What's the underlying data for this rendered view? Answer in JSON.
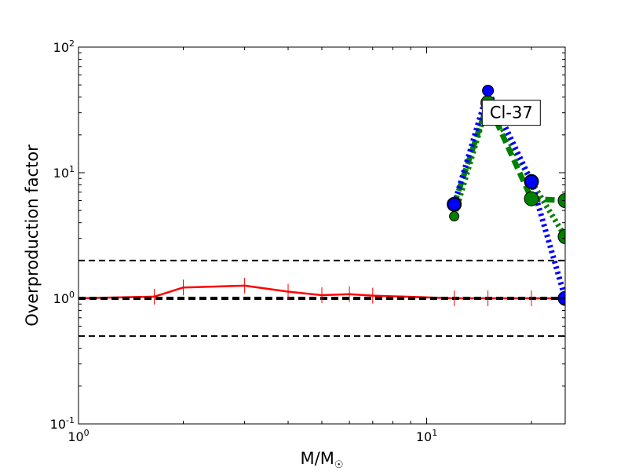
{
  "chart_data": {
    "type": "line",
    "title": "",
    "xlabel": "M/M",
    "xlabel_sub": "☉",
    "ylabel": "Overproduction factor",
    "x_scale": "log",
    "y_scale": "log",
    "xlim": [
      1,
      25
    ],
    "ylim": [
      0.1,
      100
    ],
    "grid": false,
    "x_ticks": [
      {
        "value": 1,
        "base": "10",
        "exp": "0"
      },
      {
        "value": 10,
        "base": "10",
        "exp": "1"
      }
    ],
    "y_ticks": [
      {
        "value": 0.1,
        "base": "10",
        "exp": "-1"
      },
      {
        "value": 1,
        "base": "10",
        "exp": "0"
      },
      {
        "value": 10,
        "base": "10",
        "exp": "1"
      },
      {
        "value": 100,
        "base": "10",
        "exp": "2"
      }
    ],
    "reference_lines": [
      {
        "y": 2.0,
        "style": "dashed",
        "color": "#000000",
        "width": "thin"
      },
      {
        "y": 1.0,
        "style": "dashed",
        "color": "#000000",
        "width": "thick"
      },
      {
        "y": 0.5,
        "style": "dashed",
        "color": "#000000",
        "width": "thin"
      }
    ],
    "series": [
      {
        "color": "#ff0000",
        "style": "solid",
        "marker": "vertical-tick",
        "x": [
          1.0,
          1.65,
          2.0,
          3.0,
          4.0,
          5.0,
          6.0,
          7.0,
          12.0,
          15.0,
          20.0,
          25.0
        ],
        "y": [
          1.0,
          1.03,
          1.22,
          1.26,
          1.13,
          1.06,
          1.08,
          1.05,
          1.0,
          1.0,
          1.0,
          1.0
        ]
      },
      {
        "color": "#008000",
        "style": "dotted",
        "marker": "circle",
        "x": [
          12.0,
          15.0,
          20.0,
          25.0
        ],
        "y": [
          4.5,
          36.0,
          8.5,
          3.1
        ]
      },
      {
        "color": "#008000",
        "style": "dashed",
        "marker": "circle",
        "x": [
          12.0,
          15.0,
          20.0,
          25.0
        ],
        "y": [
          5.6,
          36.0,
          6.2,
          6.0
        ]
      },
      {
        "color": "#0000ff",
        "style": "dotted",
        "marker": "circle",
        "x": [
          12.0,
          15.0,
          20.0,
          25.0
        ],
        "y": [
          5.6,
          45.0,
          8.5,
          1.0
        ]
      }
    ],
    "annotations": [
      {
        "text": "Cl-37",
        "x": 17.5,
        "y": 30
      }
    ]
  }
}
